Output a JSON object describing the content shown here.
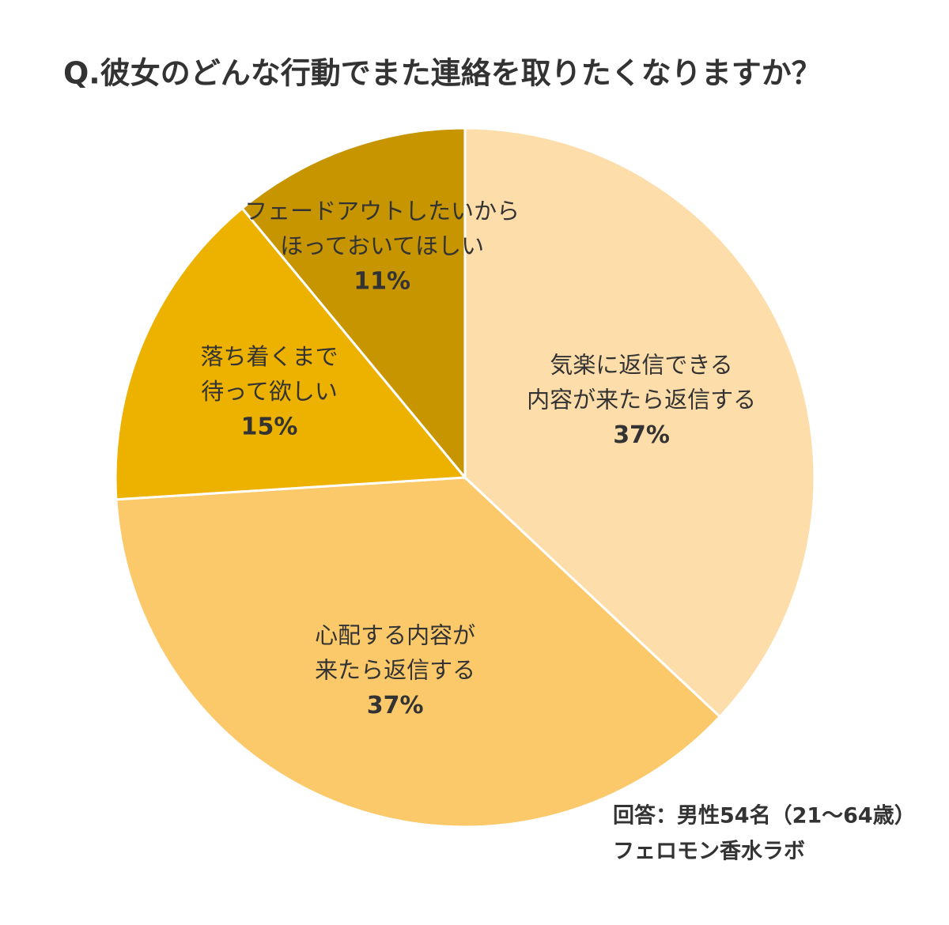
{
  "chart_data": {
    "type": "pie",
    "title": "Q.彼女のどんな行動でまた連絡を取りたくなりますか？",
    "categories": [
      [
        "気楽に返信できる",
        "内容が来たら返信する"
      ],
      [
        "心配する内容が",
        "来たら返信する"
      ],
      [
        "落ち着くまで",
        "待って欲しい"
      ],
      [
        "フェードアウトしたいから",
        "ほっておいてほしい"
      ]
    ],
    "values": [
      37,
      37,
      15,
      11
    ],
    "value_labels": [
      "37%",
      "37%",
      "15%",
      "11%"
    ],
    "colors": [
      "#FDDDAA",
      "#FCC96A",
      "#EDB100",
      "#C79500"
    ],
    "notes": [
      "回答：男性54名（21～64歳）",
      "フェロモン香水ラボ"
    ]
  }
}
